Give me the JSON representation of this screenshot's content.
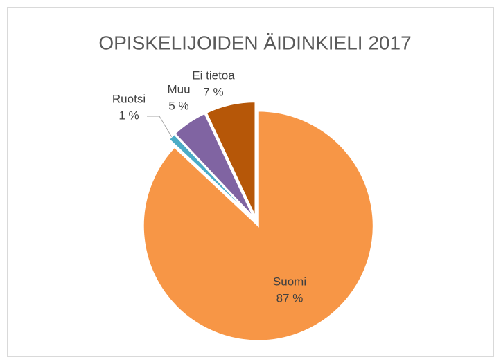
{
  "chart_data": {
    "type": "pie",
    "title": "OPISKELIJOIDEN ÄIDINKIELI 2017",
    "categories": [
      "Suomi",
      "Ruotsi",
      "Muu",
      "Ei tietoa"
    ],
    "values": [
      87,
      1,
      5,
      7
    ],
    "value_labels": [
      "87 %",
      "1 %",
      "5 %",
      "7 %"
    ],
    "colors": [
      "#f79646",
      "#4bacc6",
      "#8064a2",
      "#b65708"
    ]
  }
}
